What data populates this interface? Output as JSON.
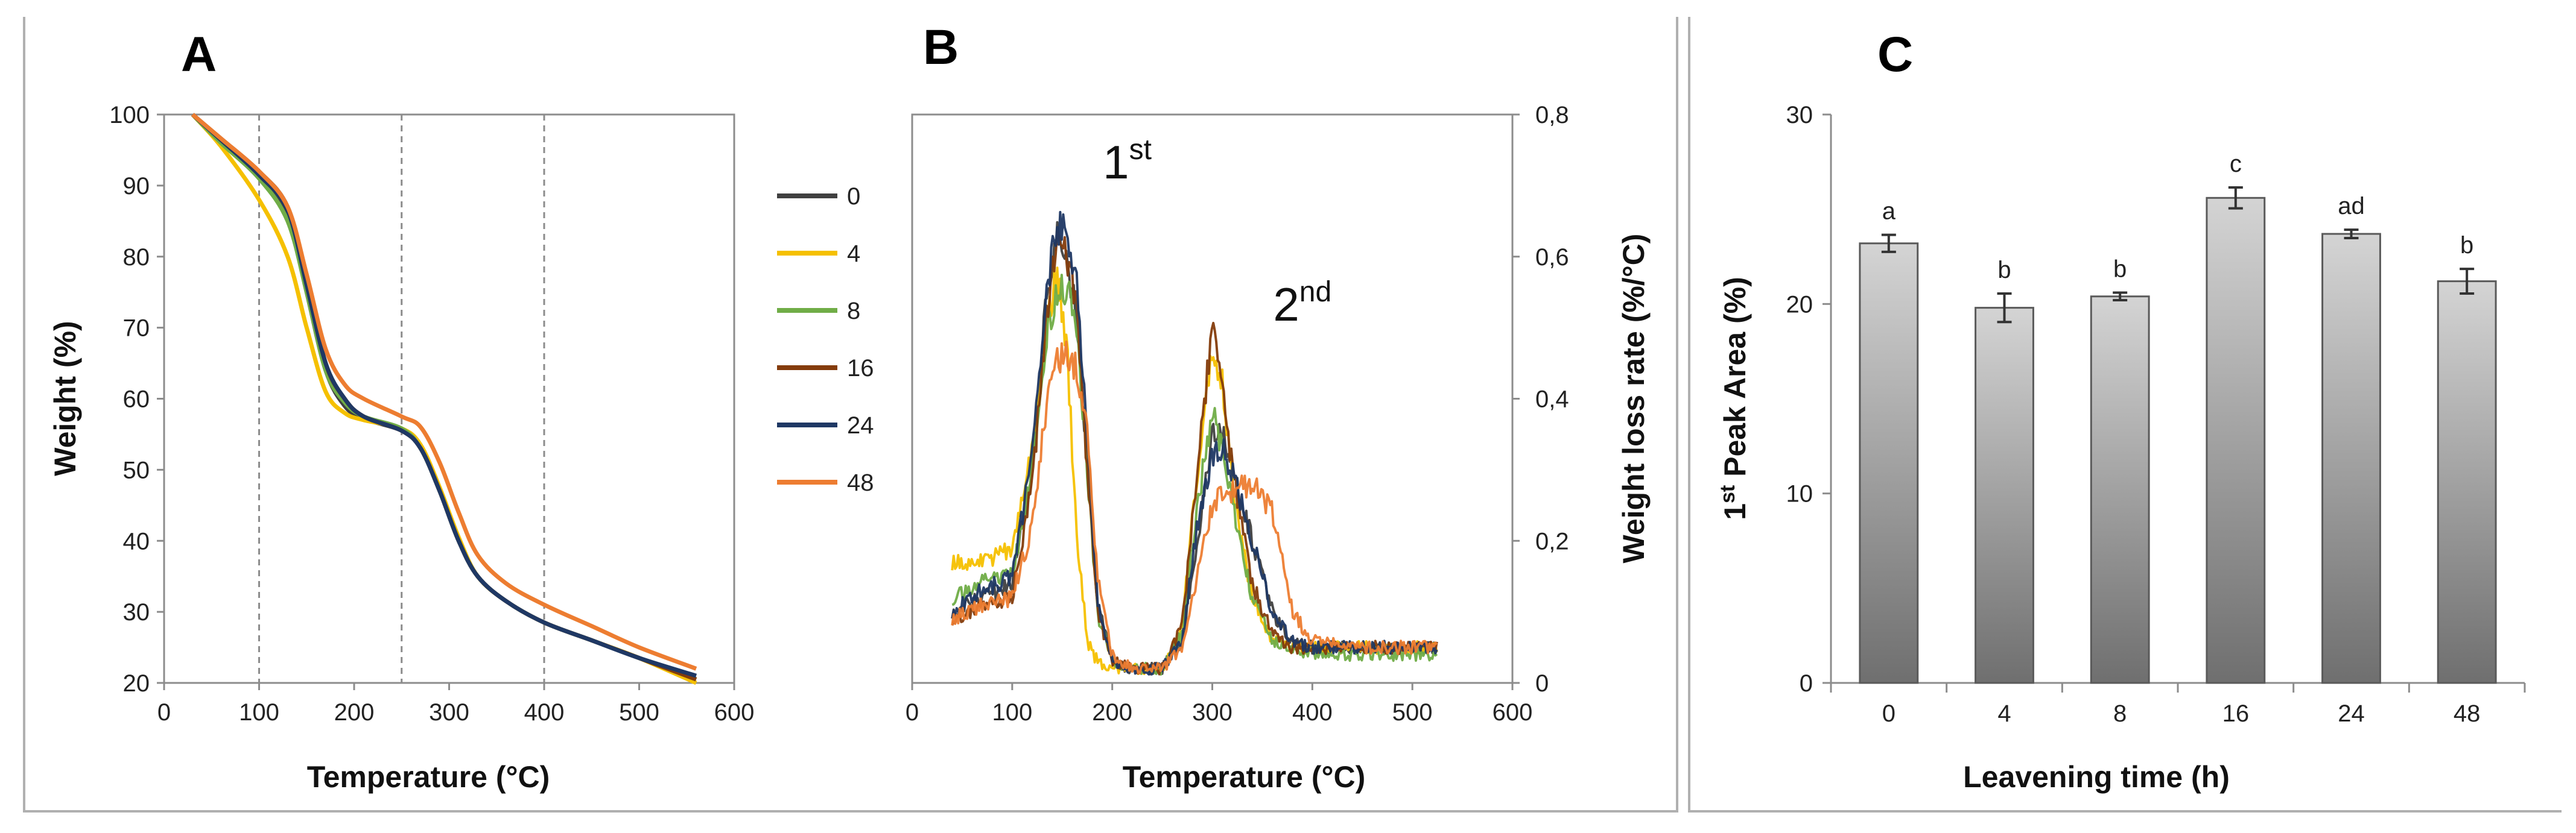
{
  "figure": {
    "panel_a_label": "A",
    "panel_b_label": "B",
    "panel_c_label": "C"
  },
  "chart_data": [
    {
      "panel": "A",
      "type": "line",
      "title": "",
      "xlabel": "Temperature (°C)",
      "ylabel": "Weight (%)",
      "xlim": [
        0,
        600
      ],
      "ylim": [
        20,
        100
      ],
      "xticks": [
        "0",
        "100",
        "200",
        "300",
        "400",
        "500",
        "600"
      ],
      "yticks": [
        "20",
        "30",
        "40",
        "50",
        "60",
        "70",
        "80",
        "90",
        "100"
      ],
      "reference_lines_x": [
        100,
        250,
        400
      ],
      "legend": {
        "placement": "right",
        "entries": [
          "0",
          "4",
          "8",
          "16",
          "24",
          "48"
        ]
      },
      "x": [
        30,
        60,
        100,
        130,
        150,
        170,
        190,
        210,
        250,
        270,
        290,
        310,
        330,
        360,
        400,
        450,
        500,
        560
      ],
      "series": [
        {
          "name": "0",
          "color": "#404040",
          "values": [
            100,
            96.5,
            91.5,
            86,
            75,
            64,
            59,
            57.2,
            55.5,
            53,
            47,
            40,
            35,
            31.5,
            28.5,
            26,
            23.5,
            20.5
          ]
        },
        {
          "name": "4",
          "color": "#F5C000",
          "values": [
            100,
            95.5,
            88,
            80,
            70,
            61,
            58,
            57,
            55.8,
            53.5,
            47.5,
            40.5,
            35,
            31.5,
            28.5,
            26,
            23.5,
            20
          ]
        },
        {
          "name": "8",
          "color": "#70AD47",
          "values": [
            100,
            96,
            91,
            85,
            75,
            64,
            59.5,
            57.5,
            55.8,
            53,
            47,
            40,
            35,
            31.5,
            28.5,
            26,
            23.5,
            20.5
          ]
        },
        {
          "name": "16",
          "color": "#843C0C",
          "values": [
            100,
            96.6,
            92,
            87,
            77,
            65,
            60,
            57.5,
            55.5,
            53,
            47,
            40,
            35,
            31.5,
            28.5,
            26,
            23.5,
            20.5
          ]
        },
        {
          "name": "24",
          "color": "#1F3864",
          "values": [
            100,
            96.4,
            91.5,
            86.5,
            76,
            65,
            60,
            57.5,
            55.5,
            53,
            47,
            40,
            35,
            31.5,
            28.5,
            26,
            23.5,
            21
          ]
        },
        {
          "name": "48",
          "color": "#ED7D31",
          "values": [
            100,
            96.6,
            92,
            87,
            77.5,
            67,
            62,
            60,
            57.5,
            56,
            51,
            44,
            38,
            34,
            31,
            28,
            25,
            22
          ]
        }
      ]
    },
    {
      "panel": "B",
      "type": "line",
      "title": "",
      "xlabel": "Temperature (°C)",
      "ylabel": "Weight loss rate (%/°C)",
      "xlim": [
        0,
        600
      ],
      "ylim": [
        0,
        0.8
      ],
      "xticks": [
        "0",
        "100",
        "200",
        "300",
        "400",
        "500",
        "600"
      ],
      "yticks": [
        "0",
        "0,2",
        "0,4",
        "0,6",
        "0,8"
      ],
      "annotations": [
        {
          "base": "1",
          "sup": "st",
          "x": 215,
          "y": 0.71
        },
        {
          "base": "2",
          "sup": "nd",
          "x": 390,
          "y": 0.51
        }
      ],
      "x": [
        40,
        70,
        100,
        120,
        135,
        145,
        155,
        165,
        175,
        185,
        200,
        220,
        250,
        270,
        285,
        300,
        310,
        320,
        340,
        360,
        380,
        400,
        450,
        500,
        525
      ],
      "series": [
        {
          "name": "0",
          "color": "#404040",
          "values": [
            0.1,
            0.12,
            0.14,
            0.3,
            0.55,
            0.62,
            0.6,
            0.5,
            0.32,
            0.12,
            0.03,
            0.02,
            0.02,
            0.06,
            0.2,
            0.35,
            0.35,
            0.3,
            0.2,
            0.1,
            0.06,
            0.05,
            0.05,
            0.05,
            0.05
          ]
        },
        {
          "name": "4",
          "color": "#F5C000",
          "values": [
            0.17,
            0.17,
            0.19,
            0.33,
            0.5,
            0.58,
            0.46,
            0.2,
            0.06,
            0.03,
            0.02,
            0.02,
            0.02,
            0.08,
            0.3,
            0.48,
            0.42,
            0.28,
            0.12,
            0.06,
            0.05,
            0.05,
            0.05,
            0.05,
            0.05
          ]
        },
        {
          "name": "8",
          "color": "#70AD47",
          "values": [
            0.12,
            0.14,
            0.15,
            0.3,
            0.5,
            0.55,
            0.56,
            0.48,
            0.3,
            0.1,
            0.03,
            0.02,
            0.02,
            0.07,
            0.25,
            0.38,
            0.33,
            0.25,
            0.12,
            0.06,
            0.05,
            0.04,
            0.04,
            0.04,
            0.04
          ]
        },
        {
          "name": "16",
          "color": "#843C0C",
          "values": [
            0.09,
            0.11,
            0.12,
            0.28,
            0.52,
            0.62,
            0.6,
            0.52,
            0.3,
            0.1,
            0.03,
            0.02,
            0.02,
            0.08,
            0.3,
            0.5,
            0.42,
            0.3,
            0.14,
            0.07,
            0.05,
            0.05,
            0.05,
            0.05,
            0.05
          ]
        },
        {
          "name": "24",
          "color": "#1F3864",
          "values": [
            0.1,
            0.13,
            0.15,
            0.32,
            0.56,
            0.65,
            0.62,
            0.55,
            0.35,
            0.12,
            0.03,
            0.02,
            0.02,
            0.06,
            0.22,
            0.32,
            0.33,
            0.3,
            0.2,
            0.1,
            0.06,
            0.05,
            0.05,
            0.05,
            0.05
          ]
        },
        {
          "name": "48",
          "color": "#ED7D31",
          "values": [
            0.09,
            0.11,
            0.12,
            0.22,
            0.4,
            0.45,
            0.46,
            0.44,
            0.35,
            0.15,
            0.04,
            0.02,
            0.02,
            0.05,
            0.15,
            0.25,
            0.27,
            0.27,
            0.28,
            0.24,
            0.1,
            0.06,
            0.05,
            0.05,
            0.05
          ]
        }
      ]
    },
    {
      "panel": "C",
      "type": "bar",
      "title": "",
      "xlabel": "Leavening time (h)",
      "ylabel": {
        "base": "1",
        "sup": "st",
        "rest": " Peak Area (%)"
      },
      "ylim": [
        0,
        30
      ],
      "yticks": [
        "0",
        "10",
        "20",
        "30"
      ],
      "categories": [
        "0",
        "4",
        "8",
        "16",
        "24",
        "48"
      ],
      "values": [
        23.2,
        19.8,
        20.4,
        25.6,
        23.7,
        21.2
      ],
      "errors": [
        0.45,
        0.75,
        0.2,
        0.55,
        0.22,
        0.65
      ],
      "letters": [
        "a",
        "b",
        "b",
        "c",
        "ad",
        "b"
      ],
      "bar_color_top": "#D4D4D4",
      "bar_color_bottom": "#6F6F6F"
    }
  ]
}
